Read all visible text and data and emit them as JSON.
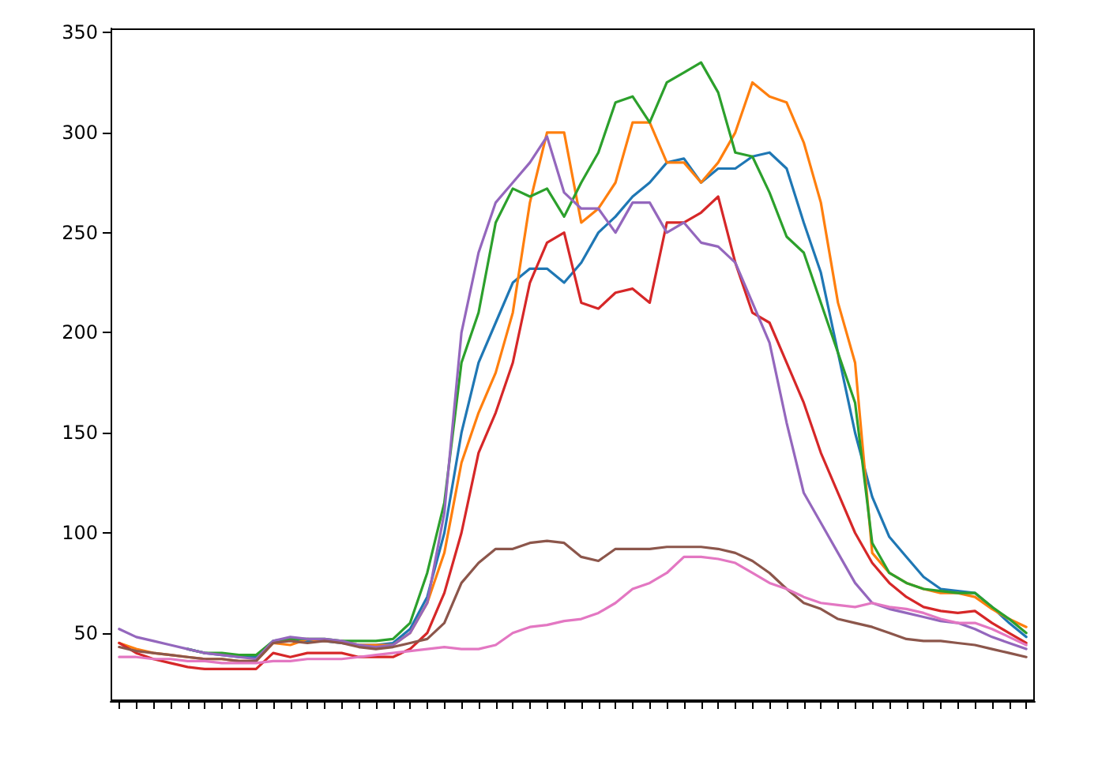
{
  "chart_data": {
    "type": "line",
    "categories": [
      null,
      null,
      null,
      null,
      null,
      null,
      null,
      null,
      null,
      null,
      null,
      null,
      null,
      null,
      null,
      null,
      null,
      null,
      null,
      null,
      null,
      null,
      null,
      null,
      null,
      null,
      null,
      null,
      null,
      null,
      null,
      null,
      null,
      null,
      null,
      null,
      null,
      null,
      null,
      null,
      null,
      null,
      null,
      null,
      null,
      null,
      null,
      null,
      null,
      null,
      null,
      null,
      null,
      null
    ],
    "ylim": [
      16,
      352
    ],
    "yticks": [
      50,
      100,
      150,
      200,
      250,
      300,
      350
    ],
    "grid": false,
    "marker": "none",
    "line_style": "solid",
    "series": [
      {
        "color": "#1f77b4",
        "values": [
          null,
          null,
          null,
          null,
          42,
          40,
          39,
          38,
          38,
          46,
          47,
          46,
          46,
          45,
          44,
          44,
          45,
          52,
          68,
          100,
          150,
          185,
          205,
          225,
          232,
          232,
          225,
          235,
          250,
          258,
          268,
          275,
          285,
          287,
          275,
          282,
          282,
          288,
          290,
          282,
          255,
          230,
          190,
          150,
          118,
          98,
          88,
          78,
          72,
          71,
          70,
          63,
          55,
          48
        ]
      },
      {
        "color": "#ff7f0e",
        "values": [
          45,
          42,
          40,
          39,
          38,
          37,
          37,
          36,
          36,
          45,
          44,
          47,
          46,
          46,
          44,
          44,
          44,
          50,
          65,
          90,
          135,
          160,
          180,
          210,
          265,
          300,
          300,
          255,
          262,
          275,
          305,
          305,
          285,
          285,
          275,
          285,
          300,
          325,
          318,
          315,
          295,
          265,
          215,
          185,
          90,
          80,
          75,
          72,
          70,
          70,
          68,
          62,
          57,
          53
        ]
      },
      {
        "color": "#2ca02c",
        "values": [
          null,
          null,
          null,
          null,
          42,
          40,
          40,
          39,
          39,
          46,
          47,
          47,
          47,
          46,
          46,
          46,
          47,
          55,
          80,
          115,
          185,
          210,
          255,
          272,
          268,
          272,
          258,
          275,
          290,
          315,
          318,
          305,
          325,
          330,
          335,
          320,
          290,
          288,
          270,
          248,
          240,
          215,
          190,
          165,
          95,
          80,
          75,
          72,
          71,
          70,
          70,
          63,
          57,
          50
        ]
      },
      {
        "color": "#d62728",
        "values": [
          45,
          40,
          37,
          35,
          33,
          32,
          32,
          32,
          32,
          40,
          38,
          40,
          40,
          40,
          38,
          38,
          38,
          42,
          50,
          70,
          100,
          140,
          160,
          185,
          225,
          245,
          250,
          215,
          212,
          220,
          222,
          215,
          255,
          255,
          260,
          268,
          235,
          210,
          205,
          185,
          165,
          140,
          120,
          100,
          85,
          75,
          68,
          63,
          61,
          60,
          61,
          55,
          50,
          45
        ]
      },
      {
        "color": "#9467bd",
        "values": [
          52,
          48,
          46,
          44,
          42,
          40,
          39,
          38,
          37,
          46,
          48,
          47,
          47,
          46,
          44,
          43,
          44,
          50,
          65,
          110,
          200,
          240,
          265,
          275,
          285,
          298,
          270,
          262,
          262,
          250,
          265,
          265,
          250,
          255,
          245,
          243,
          235,
          215,
          195,
          155,
          120,
          105,
          90,
          75,
          65,
          62,
          60,
          58,
          56,
          55,
          52,
          48,
          45,
          42
        ]
      },
      {
        "color": "#8c564b",
        "values": [
          43,
          41,
          40,
          39,
          38,
          37,
          37,
          36,
          36,
          45,
          46,
          45,
          46,
          45,
          43,
          42,
          43,
          45,
          47,
          55,
          75,
          85,
          92,
          92,
          95,
          96,
          95,
          88,
          86,
          92,
          92,
          92,
          93,
          93,
          93,
          92,
          90,
          86,
          80,
          72,
          65,
          62,
          57,
          55,
          53,
          50,
          47,
          46,
          46,
          45,
          44,
          42,
          40,
          38
        ]
      },
      {
        "color": "#e377c2",
        "values": [
          38,
          38,
          37,
          37,
          36,
          36,
          35,
          35,
          35,
          36,
          36,
          37,
          37,
          37,
          38,
          39,
          40,
          41,
          42,
          43,
          42,
          42,
          44,
          50,
          53,
          54,
          56,
          57,
          60,
          65,
          72,
          75,
          80,
          88,
          88,
          87,
          85,
          80,
          75,
          72,
          68,
          65,
          64,
          63,
          65,
          63,
          62,
          60,
          57,
          55,
          55,
          52,
          48,
          44
        ]
      }
    ]
  }
}
